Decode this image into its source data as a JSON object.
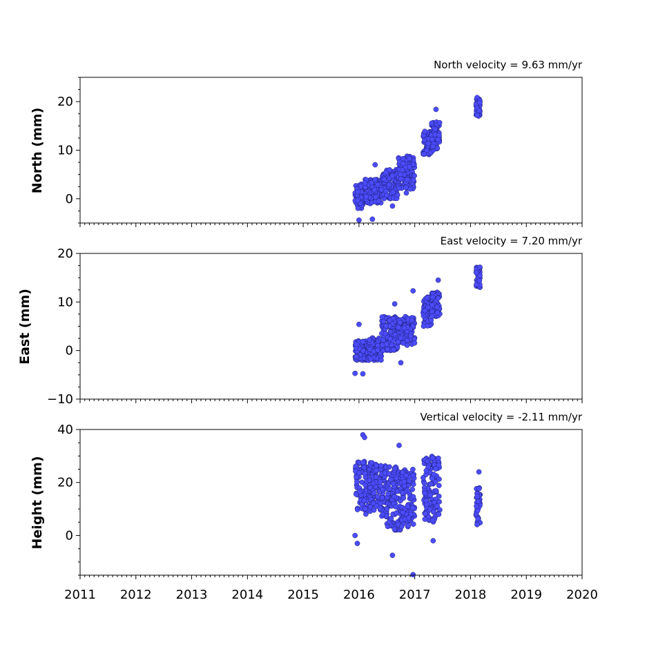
{
  "chart_data": [
    {
      "type": "scatter",
      "title": "North velocity = 9.63 mm/yr",
      "ylabel": "North (mm)",
      "xlim": [
        2011,
        2020
      ],
      "ylim": [
        -5,
        25
      ],
      "yticks": [
        0,
        10,
        20
      ],
      "show_xtick_labels": false,
      "color": "#4c4cff",
      "clusters": [
        {
          "x": [
            2015.93,
            2016.1
          ],
          "y": [
            -2,
            3
          ]
        },
        {
          "x": [
            2016.1,
            2016.4
          ],
          "y": [
            -1,
            4
          ]
        },
        {
          "x": [
            2016.4,
            2016.7
          ],
          "y": [
            0,
            6
          ]
        },
        {
          "x": [
            2016.7,
            2017.0
          ],
          "y": [
            2,
            9
          ]
        },
        {
          "x": [
            2017.15,
            2017.3
          ],
          "y": [
            9,
            14
          ]
        },
        {
          "x": [
            2017.3,
            2017.45
          ],
          "y": [
            10,
            16
          ]
        },
        {
          "x": [
            2018.1,
            2018.17
          ],
          "y": [
            17,
            21
          ]
        }
      ],
      "outliers": [
        {
          "x": 2016.0,
          "y": -4.4
        },
        {
          "x": 2016.24,
          "y": -4.2
        },
        {
          "x": 2016.29,
          "y": 7
        },
        {
          "x": 2017.38,
          "y": 18.4
        },
        {
          "x": 2016.85,
          "y": 1.2
        },
        {
          "x": 2016.6,
          "y": -1.5
        }
      ]
    },
    {
      "type": "scatter",
      "title": "East velocity = 7.20 mm/yr",
      "ylabel": "East (mm)",
      "xlim": [
        2011,
        2020
      ],
      "ylim": [
        -10,
        20
      ],
      "yticks": [
        -10,
        0,
        10,
        20
      ],
      "show_xtick_labels": false,
      "color": "#4c4cff",
      "clusters": [
        {
          "x": [
            2015.93,
            2016.15
          ],
          "y": [
            -2,
            2
          ]
        },
        {
          "x": [
            2016.15,
            2016.4
          ],
          "y": [
            -2,
            3
          ]
        },
        {
          "x": [
            2016.4,
            2016.7
          ],
          "y": [
            0,
            7
          ]
        },
        {
          "x": [
            2016.7,
            2017.0
          ],
          "y": [
            1,
            7
          ]
        },
        {
          "x": [
            2017.15,
            2017.3
          ],
          "y": [
            5,
            11
          ]
        },
        {
          "x": [
            2017.3,
            2017.45
          ],
          "y": [
            7,
            12
          ]
        },
        {
          "x": [
            2018.1,
            2018.17
          ],
          "y": [
            13,
            17.2
          ]
        }
      ],
      "outliers": [
        {
          "x": 2015.93,
          "y": -4.7
        },
        {
          "x": 2016.07,
          "y": -4.8
        },
        {
          "x": 2016.0,
          "y": 5.4
        },
        {
          "x": 2016.64,
          "y": 9.6
        },
        {
          "x": 2016.97,
          "y": 12.3
        },
        {
          "x": 2017.42,
          "y": 14.5
        },
        {
          "x": 2016.75,
          "y": -2.5
        }
      ]
    },
    {
      "type": "scatter",
      "title": "Vertical velocity = -2.11 mm/yr",
      "ylabel": "Height (mm)",
      "xlim": [
        2011,
        2020
      ],
      "ylim": [
        -15,
        40
      ],
      "yticks": [
        0,
        20,
        40
      ],
      "xticks": [
        2011,
        2012,
        2013,
        2014,
        2015,
        2016,
        2017,
        2018,
        2019,
        2020
      ],
      "show_xtick_labels": true,
      "color": "#4c4cff",
      "clusters": [
        {
          "x": [
            2015.93,
            2016.25
          ],
          "y": [
            8,
            28
          ]
        },
        {
          "x": [
            2016.25,
            2016.5
          ],
          "y": [
            7,
            27
          ]
        },
        {
          "x": [
            2016.5,
            2016.75
          ],
          "y": [
            2,
            26
          ]
        },
        {
          "x": [
            2016.75,
            2017.0
          ],
          "y": [
            3,
            25
          ]
        },
        {
          "x": [
            2017.15,
            2017.45
          ],
          "y": [
            5,
            30
          ]
        },
        {
          "x": [
            2018.1,
            2018.17
          ],
          "y": [
            4,
            18
          ]
        }
      ],
      "outliers": [
        {
          "x": 2016.07,
          "y": 38
        },
        {
          "x": 2016.1,
          "y": 37
        },
        {
          "x": 2015.93,
          "y": 0
        },
        {
          "x": 2015.97,
          "y": -3
        },
        {
          "x": 2016.6,
          "y": -7.5
        },
        {
          "x": 2016.97,
          "y": -14.8
        },
        {
          "x": 2016.72,
          "y": 34
        },
        {
          "x": 2018.15,
          "y": 24
        },
        {
          "x": 2017.33,
          "y": -2
        }
      ]
    }
  ]
}
